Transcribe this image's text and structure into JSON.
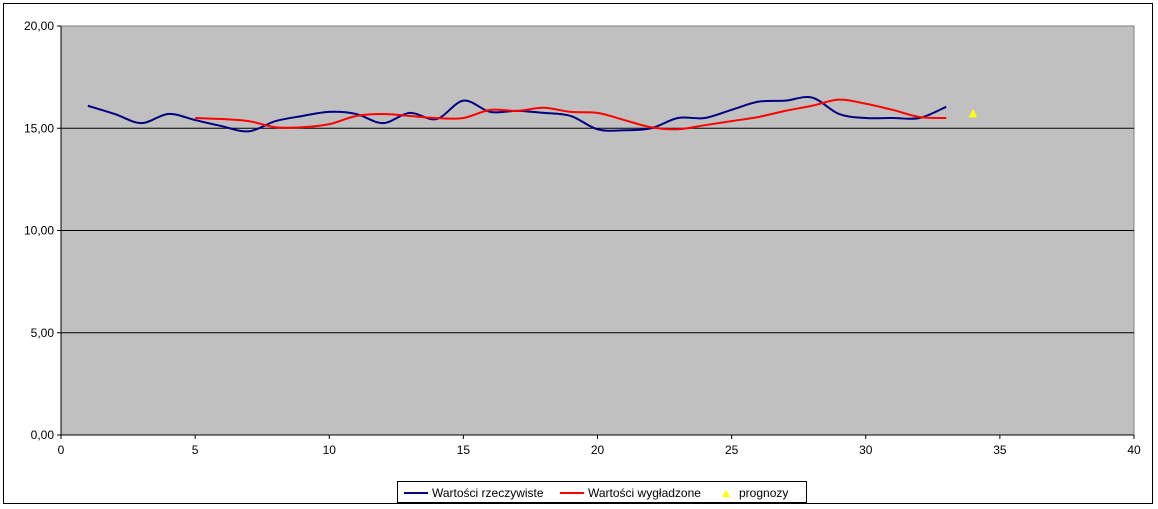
{
  "chart_data": {
    "type": "line",
    "xlim": [
      0,
      40
    ],
    "ylim": [
      0,
      20
    ],
    "x_ticks": [
      0,
      5,
      10,
      15,
      20,
      25,
      30,
      35,
      40
    ],
    "y_ticks": [
      "0,00",
      "5,00",
      "10,00",
      "15,00",
      "20,00"
    ],
    "y_tick_values": [
      0,
      5,
      10,
      15,
      20
    ],
    "plot_background": "#c0c0c0",
    "grid": "horizontal",
    "legend_position": "bottom",
    "series": [
      {
        "name": "Wartości rzeczywiste",
        "color": "#000080",
        "marker": "none",
        "x": [
          1,
          2,
          3,
          4,
          5,
          6,
          7,
          8,
          9,
          10,
          11,
          12,
          13,
          14,
          15,
          16,
          17,
          18,
          19,
          20,
          21,
          22,
          23,
          24,
          25,
          26,
          27,
          28,
          29,
          30,
          31,
          32,
          33
        ],
        "y": [
          16.1,
          15.7,
          15.25,
          15.7,
          15.4,
          15.1,
          14.85,
          15.35,
          15.6,
          15.8,
          15.7,
          15.25,
          15.75,
          15.45,
          16.35,
          15.8,
          15.85,
          15.75,
          15.6,
          14.95,
          14.9,
          15.0,
          15.5,
          15.5,
          15.9,
          16.3,
          16.35,
          16.5,
          15.7,
          15.5,
          15.5,
          15.5,
          16.05
        ]
      },
      {
        "name": "Wartości wygładzone",
        "color": "#ff0000",
        "marker": "none",
        "x": [
          5,
          6,
          7,
          8,
          9,
          10,
          11,
          12,
          13,
          14,
          15,
          16,
          17,
          18,
          19,
          20,
          21,
          22,
          23,
          24,
          25,
          26,
          27,
          28,
          29,
          30,
          31,
          32,
          33
        ],
        "y": [
          15.5,
          15.45,
          15.35,
          15.05,
          15.05,
          15.2,
          15.6,
          15.7,
          15.6,
          15.5,
          15.5,
          15.9,
          15.85,
          16.0,
          15.8,
          15.75,
          15.4,
          15.05,
          14.95,
          15.15,
          15.35,
          15.55,
          15.85,
          16.1,
          16.4,
          16.2,
          15.9,
          15.55,
          15.5
        ]
      },
      {
        "name": "prognozy",
        "color": "#ffff00",
        "marker": "triangle",
        "x": [
          34
        ],
        "y": [
          15.7
        ]
      }
    ]
  }
}
